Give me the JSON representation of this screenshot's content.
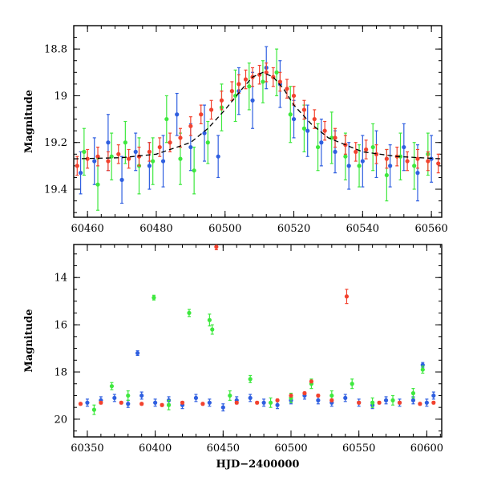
{
  "chart_data": [
    {
      "type": "scatter",
      "panel": "top",
      "title": "",
      "xlabel": "",
      "ylabel": "Magnitude",
      "xlim": [
        60456,
        60563
      ],
      "ylim": [
        19.52,
        18.7
      ],
      "y_inverted": true,
      "grid": false,
      "legend": null,
      "x_ticks": [
        60460,
        60480,
        60500,
        60520,
        60540,
        60560
      ],
      "x_tick_labels": [
        "60460",
        "60480",
        "60500",
        "60520",
        "60540",
        "60560"
      ],
      "y_ticks": [
        18.8,
        19,
        19.2,
        19.4
      ],
      "y_tick_labels": [
        "18.8",
        "19",
        "19.2",
        "19.4"
      ],
      "model_curve": {
        "color": "#000000",
        "style": "dashed",
        "baseline_mag": 19.27,
        "peak_x": 60511,
        "peak_mag": 18.9,
        "x": [
          60456,
          60470,
          60480,
          60490,
          60495,
          60500,
          60505,
          60508,
          60511,
          60514,
          60517,
          60520,
          60525,
          60530,
          60540,
          60550,
          60563
        ],
        "y": [
          19.27,
          19.265,
          19.25,
          19.2,
          19.14,
          19.06,
          18.97,
          18.92,
          18.9,
          18.92,
          18.97,
          19.04,
          19.12,
          19.18,
          19.24,
          19.26,
          19.27
        ]
      },
      "series": [
        {
          "color": "#2f5fe0",
          "x": [
            60458,
            60462,
            60466,
            60470,
            60474,
            60478,
            60482,
            60486,
            60490,
            60494,
            60498,
            60504,
            60508,
            60512,
            60516,
            60520,
            60524,
            60528,
            60532,
            60536,
            60540,
            60544,
            60548,
            60552,
            60556,
            60560
          ],
          "y": [
            19.33,
            19.28,
            19.2,
            19.36,
            19.24,
            19.3,
            19.28,
            19.08,
            19.22,
            19.16,
            19.26,
            18.98,
            19.02,
            18.88,
            18.95,
            19.1,
            19.15,
            19.2,
            19.24,
            19.3,
            19.28,
            19.25,
            19.3,
            19.22,
            19.33,
            19.27
          ],
          "err": [
            0.09,
            0.1,
            0.12,
            0.1,
            0.08,
            0.1,
            0.11,
            0.09,
            0.1,
            0.12,
            0.09,
            0.1,
            0.12,
            0.09,
            0.1,
            0.08,
            0.11,
            0.1,
            0.09,
            0.1,
            0.11,
            0.1,
            0.09,
            0.1,
            0.12,
            0.1
          ]
        },
        {
          "color": "#3ee83e",
          "x": [
            60459,
            60463,
            60467,
            60471,
            60475,
            60479,
            60483,
            60487,
            60491,
            60495,
            60499,
            60503,
            60507,
            60511,
            60515,
            60519,
            60523,
            60527,
            60531,
            60535,
            60539,
            60543,
            60547,
            60551,
            60555,
            60559
          ],
          "y": [
            19.24,
            19.38,
            19.26,
            19.2,
            19.3,
            19.28,
            19.1,
            19.27,
            19.32,
            19.2,
            19.05,
            19.0,
            18.96,
            18.94,
            18.9,
            19.08,
            19.14,
            19.22,
            19.18,
            19.26,
            19.3,
            19.22,
            19.34,
            19.26,
            19.3,
            19.25
          ],
          "err": [
            0.1,
            0.11,
            0.1,
            0.09,
            0.12,
            0.1,
            0.1,
            0.11,
            0.1,
            0.09,
            0.1,
            0.11,
            0.1,
            0.09,
            0.1,
            0.12,
            0.1,
            0.1,
            0.11,
            0.1,
            0.09,
            0.1,
            0.11,
            0.1,
            0.1,
            0.09
          ]
        },
        {
          "color": "#f2422e",
          "x": [
            60457,
            60460,
            60463,
            60466,
            60469,
            60472,
            60475,
            60478,
            60481,
            60484,
            60487,
            60490,
            60493,
            60496,
            60499,
            60502,
            60504,
            60506,
            60508,
            60510,
            60512,
            60514,
            60516,
            60518,
            60520,
            60523,
            60526,
            60529,
            60532,
            60535,
            60538,
            60541,
            60544,
            60547,
            60550,
            60553,
            60556,
            60559,
            60562
          ],
          "y": [
            19.3,
            19.27,
            19.26,
            19.28,
            19.25,
            19.27,
            19.26,
            19.24,
            19.22,
            19.2,
            19.18,
            19.13,
            19.08,
            19.06,
            19.02,
            18.98,
            18.95,
            18.93,
            18.92,
            18.91,
            18.9,
            18.92,
            18.94,
            18.97,
            19.0,
            19.06,
            19.1,
            19.15,
            19.18,
            19.21,
            19.24,
            19.23,
            19.25,
            19.27,
            19.26,
            19.28,
            19.27,
            19.28,
            19.29
          ],
          "err": [
            0.04,
            0.04,
            0.04,
            0.04,
            0.04,
            0.04,
            0.04,
            0.04,
            0.04,
            0.04,
            0.04,
            0.04,
            0.04,
            0.04,
            0.04,
            0.04,
            0.04,
            0.04,
            0.04,
            0.04,
            0.04,
            0.04,
            0.04,
            0.04,
            0.04,
            0.04,
            0.04,
            0.04,
            0.04,
            0.04,
            0.04,
            0.04,
            0.04,
            0.04,
            0.04,
            0.04,
            0.04,
            0.04,
            0.04
          ]
        }
      ]
    },
    {
      "type": "scatter",
      "panel": "bottom",
      "title": "",
      "xlabel": "HJD−2400000",
      "ylabel": "Magnitude",
      "xlim": [
        60340,
        60611
      ],
      "ylim": [
        20.75,
        12.6
      ],
      "y_inverted": true,
      "grid": false,
      "legend": null,
      "x_ticks": [
        60350,
        60400,
        60450,
        60500,
        60550,
        60600
      ],
      "x_tick_labels": [
        "60350",
        "60400",
        "60450",
        "60500",
        "60550",
        "60600"
      ],
      "y_ticks": [
        14,
        16,
        18,
        20
      ],
      "y_tick_labels": [
        "14",
        "16",
        "18",
        "20"
      ],
      "series": [
        {
          "color": "#2f5fe0",
          "x": [
            60350,
            60360,
            60370,
            60380,
            60387,
            60390,
            60400,
            60410,
            60420,
            60430,
            60440,
            60450,
            60460,
            60470,
            60480,
            60490,
            60500,
            60510,
            60520,
            60530,
            60540,
            60550,
            60560,
            60570,
            60580,
            60590,
            60597,
            60600,
            60605
          ],
          "y": [
            19.3,
            19.2,
            19.1,
            19.35,
            17.2,
            19.0,
            19.3,
            19.2,
            19.4,
            19.1,
            19.3,
            19.5,
            19.2,
            19.1,
            19.3,
            19.4,
            19.2,
            19.0,
            19.2,
            19.3,
            19.1,
            19.3,
            19.4,
            19.2,
            19.3,
            19.2,
            17.7,
            19.3,
            19.0
          ],
          "err": [
            0.15,
            0.15,
            0.15,
            0.15,
            0.1,
            0.15,
            0.15,
            0.15,
            0.15,
            0.15,
            0.15,
            0.15,
            0.15,
            0.15,
            0.15,
            0.15,
            0.15,
            0.15,
            0.15,
            0.15,
            0.15,
            0.15,
            0.15,
            0.15,
            0.15,
            0.15,
            0.1,
            0.15,
            0.15
          ]
        },
        {
          "color": "#3ee83e",
          "x": [
            60355,
            60368,
            60380,
            60399,
            60410,
            60425,
            60440,
            60442,
            60455,
            60470,
            60485,
            60500,
            60515,
            60530,
            60545,
            60560,
            60575,
            60590,
            60597
          ],
          "y": [
            19.6,
            18.6,
            19.0,
            14.85,
            19.4,
            15.5,
            15.8,
            16.2,
            19.0,
            18.3,
            19.3,
            19.1,
            18.5,
            19.0,
            18.5,
            19.3,
            19.2,
            18.9,
            17.9
          ],
          "err": [
            0.2,
            0.15,
            0.2,
            0.1,
            0.2,
            0.15,
            0.25,
            0.2,
            0.2,
            0.15,
            0.2,
            0.2,
            0.2,
            0.2,
            0.2,
            0.2,
            0.2,
            0.2,
            0.15
          ]
        },
        {
          "color": "#f2422e",
          "x": [
            60345,
            60360,
            60375,
            60390,
            60405,
            60420,
            60435,
            60445,
            60460,
            60475,
            60490,
            60500,
            60510,
            60515,
            60520,
            60530,
            60541,
            60550,
            60565,
            60580,
            60595,
            60605
          ],
          "y": [
            19.35,
            19.3,
            19.3,
            19.35,
            19.4,
            19.3,
            19.35,
            12.7,
            19.3,
            19.3,
            19.2,
            19.0,
            18.9,
            18.4,
            19.0,
            19.2,
            14.8,
            19.3,
            19.3,
            19.3,
            19.35,
            19.3
          ],
          "err": [
            0.05,
            0.05,
            0.05,
            0.05,
            0.05,
            0.05,
            0.05,
            0.12,
            0.05,
            0.05,
            0.05,
            0.05,
            0.05,
            0.05,
            0.05,
            0.05,
            0.3,
            0.05,
            0.05,
            0.05,
            0.05,
            0.05
          ]
        }
      ]
    }
  ]
}
